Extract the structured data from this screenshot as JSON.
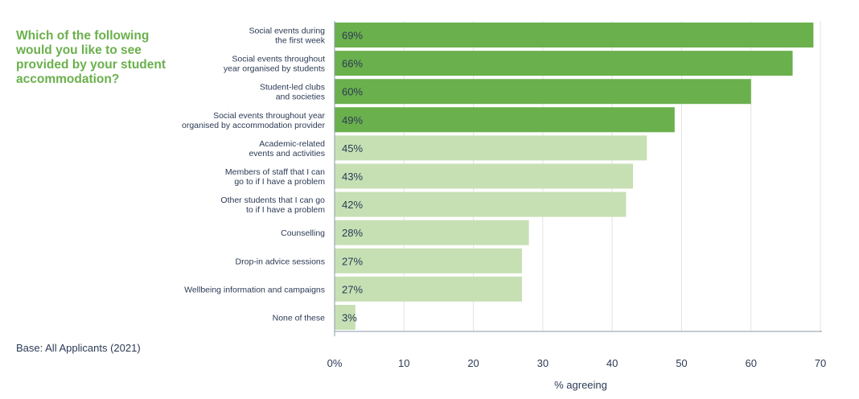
{
  "question": "Which of the following\nwould you like to see\nprovided by your student\naccommodation?",
  "base_note": "Base: All Applicants (2021)",
  "colors": {
    "highlight": "#6ab04c",
    "normal": "#c6e0b4",
    "text": "#2b3a55",
    "grid": "#e3e3e3"
  },
  "chart_data": {
    "type": "bar",
    "orientation": "horizontal",
    "categories": [
      [
        "Social events during",
        "the first week"
      ],
      [
        "Social events throughout",
        "year organised by students"
      ],
      [
        "Student-led clubs",
        "and societies"
      ],
      [
        "Social events throughout year",
        "organised by accommodation provider"
      ],
      [
        "Academic-related",
        "events and activities"
      ],
      [
        "Members of staff that I can",
        "go to if I have a problem"
      ],
      [
        "Other students that I can go",
        "to if I have a problem"
      ],
      [
        "Counselling"
      ],
      [
        "Drop-in advice sessions"
      ],
      [
        "Wellbeing information and campaigns"
      ],
      [
        "None of these"
      ]
    ],
    "values": [
      69,
      66,
      60,
      49,
      45,
      43,
      42,
      28,
      27,
      27,
      3
    ],
    "value_labels": [
      "69%",
      "66%",
      "60%",
      "49%",
      "45%",
      "43%",
      "42%",
      "28%",
      "27%",
      "27%",
      "3%"
    ],
    "highlighted_count": 4,
    "xlim": [
      0,
      70
    ],
    "xticks": [
      0,
      10,
      20,
      30,
      40,
      50,
      60,
      70
    ],
    "xtick_labels": [
      "0%",
      "10",
      "20",
      "30",
      "40",
      "50",
      "60",
      "70"
    ],
    "xlabel": "% agreeing",
    "grid": true
  }
}
